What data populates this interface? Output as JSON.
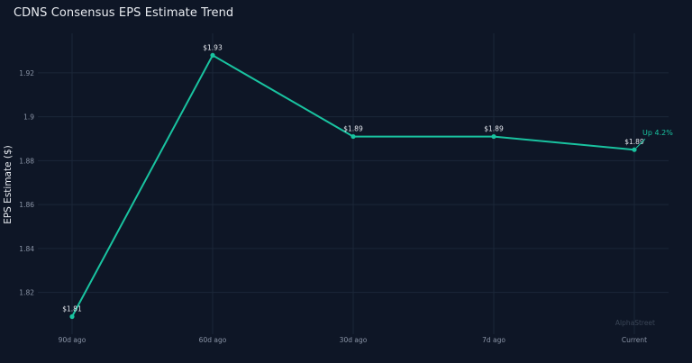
{
  "chart_data": {
    "type": "line",
    "title": "CDNS Consensus EPS Estimate Trend",
    "xlabel": "",
    "ylabel": "EPS Estimate ($)",
    "categories": [
      "90d ago",
      "60d ago",
      "30d ago",
      "7d ago",
      "Current"
    ],
    "values": [
      1.809,
      1.928,
      1.891,
      1.891,
      1.885
    ],
    "data_labels": [
      "$1.81",
      "$1.93",
      "$1.89",
      "$1.89",
      "$1.89"
    ],
    "ylim": [
      1.801,
      1.938
    ],
    "yticks": [
      1.82,
      1.84,
      1.86,
      1.88,
      1.9,
      1.92
    ],
    "ytick_labels": [
      "1.82",
      "1.84",
      "1.86",
      "1.88",
      "1.9",
      "1.92"
    ],
    "annotation": "Up 4.2%",
    "watermark": "AlphaStreet",
    "grid": true,
    "line_color": "#19c3a0",
    "grid_color": "#1b2638",
    "background": "#0e1626"
  }
}
